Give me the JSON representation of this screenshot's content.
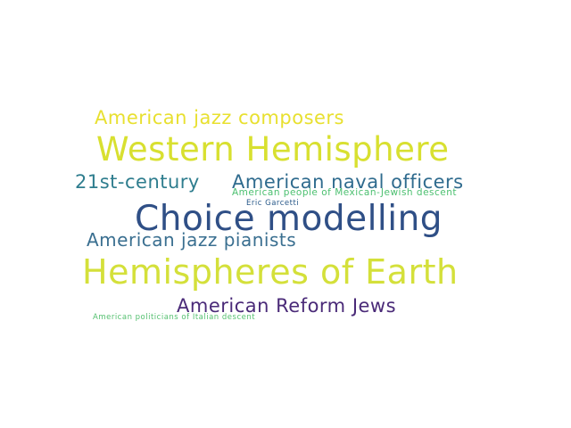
{
  "words": [
    {
      "text": "American jazz composers",
      "color": "#e8e030"
    },
    {
      "text": "Western Hemisphere",
      "color": "#d8e030"
    },
    {
      "text": "21st-century",
      "color": "#2e7d8e"
    },
    {
      "text": "American naval officers",
      "color": "#2f6b8e"
    },
    {
      "text": "American people of Mexican-Jewish descent",
      "color": "#4cc070"
    },
    {
      "text": "Eric Garcetti",
      "color": "#2a5a8a"
    },
    {
      "text": "Choice modelling",
      "color": "#2f4f86"
    },
    {
      "text": "American jazz pianists",
      "color": "#3a6f90"
    },
    {
      "text": "Hemispheres of Earth",
      "color": "#d4e03a"
    },
    {
      "text": "American Reform Jews",
      "color": "#4a2a78"
    },
    {
      "text": "American politicians of Italian descent",
      "color": "#55c070"
    }
  ]
}
